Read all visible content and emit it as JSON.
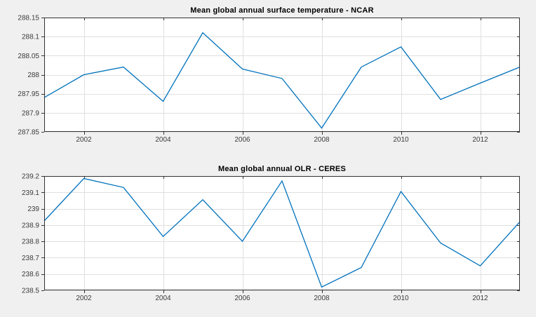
{
  "figure": {
    "background_color": "#f0f0f0",
    "plot_background_color": "#ffffff",
    "line_color": "#0072bd",
    "grid_color": "#e0e0e0",
    "axis_color": "#333333",
    "tick_label_color": "#3b3b3b",
    "title_color": "#000000"
  },
  "chart_data": [
    {
      "type": "line",
      "title": "Mean global annual surface temperature - NCAR",
      "xlabel": "",
      "ylabel": "",
      "grid": true,
      "legend": "none",
      "xlim": [
        2001,
        2013
      ],
      "ylim": [
        287.85,
        288.15
      ],
      "xticks": [
        2002,
        2004,
        2006,
        2008,
        2010,
        2012
      ],
      "xtick_labels": [
        "2002",
        "2004",
        "2006",
        "2008",
        "2010",
        "2012"
      ],
      "yticks": [
        287.85,
        287.9,
        287.95,
        288,
        288.05,
        288.1,
        288.15
      ],
      "ytick_labels": [
        "287.85",
        "287.9",
        "287.95",
        "288",
        "288.05",
        "288.1",
        "288.15"
      ],
      "x": [
        2001,
        2002,
        2003,
        2004,
        2005,
        2006,
        2007,
        2008,
        2009,
        2010,
        2011,
        2012,
        2013
      ],
      "values": [
        287.94,
        288.0,
        288.02,
        287.93,
        288.11,
        288.015,
        287.99,
        287.86,
        288.02,
        288.073,
        287.935,
        287.978,
        288.02
      ]
    },
    {
      "type": "line",
      "title": "Mean global annual OLR - CERES",
      "xlabel": "",
      "ylabel": "",
      "grid": true,
      "legend": "none",
      "xlim": [
        2001,
        2013
      ],
      "ylim": [
        238.5,
        239.2
      ],
      "xticks": [
        2002,
        2004,
        2006,
        2008,
        2010,
        2012
      ],
      "xtick_labels": [
        "2002",
        "2004",
        "2006",
        "2008",
        "2010",
        "2012"
      ],
      "yticks": [
        238.5,
        238.6,
        238.7,
        238.8,
        238.9,
        239,
        239.1,
        239.2
      ],
      "ytick_labels": [
        "238.5",
        "238.6",
        "238.7",
        "238.8",
        "238.9",
        "239",
        "239.1",
        "239.2"
      ],
      "x": [
        2001,
        2002,
        2003,
        2004,
        2005,
        2006,
        2007,
        2008,
        2009,
        2010,
        2011,
        2012,
        2013
      ],
      "values": [
        238.925,
        239.185,
        239.13,
        238.83,
        239.055,
        238.8,
        239.17,
        238.52,
        238.64,
        239.105,
        238.79,
        238.65,
        238.92
      ]
    }
  ]
}
